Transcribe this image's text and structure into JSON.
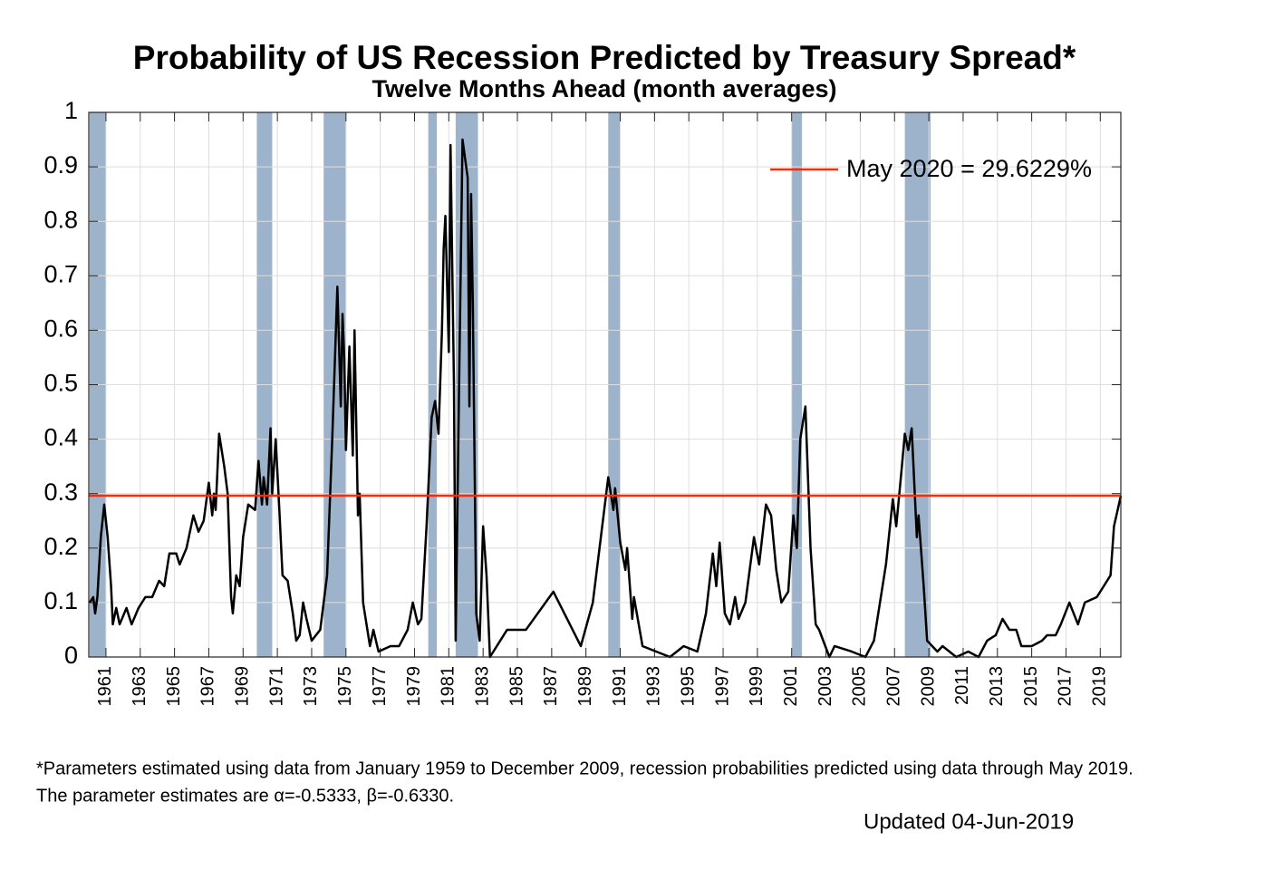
{
  "chart_data": {
    "type": "line",
    "title": "Probability of US Recession Predicted by Treasury Spread*",
    "subtitle": "Twelve Months Ahead (month averages)",
    "xlim": [
      1960,
      2020.2
    ],
    "ylim": [
      0,
      1
    ],
    "xticks": [
      1961,
      1963,
      1965,
      1967,
      1969,
      1971,
      1973,
      1975,
      1977,
      1979,
      1981,
      1983,
      1985,
      1987,
      1989,
      1991,
      1993,
      1995,
      1997,
      1999,
      2001,
      2003,
      2005,
      2007,
      2009,
      2011,
      2013,
      2015,
      2017,
      2019
    ],
    "yticks": [
      0,
      0.1,
      0.2,
      0.3,
      0.4,
      0.5,
      0.6,
      0.7,
      0.8,
      0.9,
      1
    ],
    "grid": true,
    "recession_color": "#9db3cc",
    "recessions": [
      [
        1960.05,
        1961.0
      ],
      [
        1969.8,
        1970.7
      ],
      [
        1973.7,
        1975.0
      ],
      [
        1979.8,
        1980.3
      ],
      [
        1981.4,
        1982.7
      ],
      [
        1990.3,
        1991.0
      ],
      [
        2001.0,
        2001.6
      ],
      [
        2007.6,
        2009.1
      ]
    ],
    "x": [
      1960.05,
      1960.26,
      1960.37,
      1960.5,
      1960.7,
      1960.9,
      1961.1,
      1961.3,
      1961.4,
      1961.6,
      1961.8,
      1962.2,
      1962.5,
      1962.9,
      1963.3,
      1963.7,
      1964.1,
      1964.4,
      1964.7,
      1965.1,
      1965.3,
      1965.7,
      1966.1,
      1966.4,
      1966.7,
      1967.0,
      1967.2,
      1967.3,
      1967.4,
      1967.6,
      1967.9,
      1968.1,
      1968.3,
      1968.4,
      1968.6,
      1968.8,
      1969.0,
      1969.3,
      1969.7,
      1969.9,
      1970.1,
      1970.2,
      1970.4,
      1970.6,
      1970.7,
      1970.9,
      1971.1,
      1971.3,
      1971.6,
      1971.9,
      1972.1,
      1972.3,
      1972.5,
      1972.7,
      1973.0,
      1973.5,
      1973.9,
      1974.2,
      1974.5,
      1974.7,
      1974.8,
      1974.9,
      1975.0,
      1975.2,
      1975.4,
      1975.5,
      1975.7,
      1975.8,
      1976.0,
      1976.4,
      1976.6,
      1976.9,
      1977.6,
      1978.1,
      1978.6,
      1978.9,
      1979.2,
      1979.4,
      1979.7,
      1980.0,
      1980.2,
      1980.4,
      1980.6,
      1980.7,
      1980.8,
      1981.0,
      1981.1,
      1981.3,
      1981.4,
      1981.6,
      1981.8,
      1982.1,
      1982.2,
      1982.3,
      1982.4,
      1982.6,
      1982.8,
      1983.0,
      1983.2,
      1983.4,
      1984.4,
      1985.5,
      1987.1,
      1987.9,
      1988.7,
      1989.4,
      1990.3,
      1990.6,
      1990.7,
      1991.0,
      1991.3,
      1991.4,
      1991.7,
      1991.8,
      1992.3,
      1993.9,
      1994.7,
      1995.5,
      1996.0,
      1996.4,
      1996.6,
      1996.8,
      1997.1,
      1997.4,
      1997.7,
      1997.9,
      1998.3,
      1998.8,
      1999.1,
      1999.5,
      1999.8,
      2000.1,
      2000.4,
      2000.8,
      2001.1,
      2001.3,
      2001.5,
      2001.8,
      2002.1,
      2002.4,
      2002.6,
      2003.2,
      2003.5,
      2004.5,
      2005.3,
      2005.8,
      2006.5,
      2006.9,
      2007.1,
      2007.4,
      2007.6,
      2007.8,
      2008.0,
      2008.3,
      2008.4,
      2008.7,
      2008.9,
      2009.5,
      2009.8,
      2010.6,
      2011.3,
      2011.9,
      2012.4,
      2012.9,
      2013.3,
      2013.7,
      2014.1,
      2014.4,
      2015.0,
      2015.6,
      2015.9,
      2016.4,
      2016.7,
      2017.2,
      2017.7,
      2018.1,
      2018.8,
      2019.2,
      2019.6,
      2019.8,
      2020.2
    ],
    "series": [
      {
        "color": "#000000",
        "values": [
          0.1,
          0.11,
          0.08,
          0.11,
          0.22,
          0.28,
          0.22,
          0.13,
          0.06,
          0.09,
          0.06,
          0.09,
          0.06,
          0.09,
          0.11,
          0.11,
          0.14,
          0.13,
          0.19,
          0.19,
          0.17,
          0.2,
          0.26,
          0.23,
          0.25,
          0.32,
          0.26,
          0.3,
          0.27,
          0.41,
          0.35,
          0.3,
          0.11,
          0.08,
          0.15,
          0.13,
          0.22,
          0.28,
          0.27,
          0.36,
          0.28,
          0.33,
          0.28,
          0.42,
          0.3,
          0.4,
          0.28,
          0.15,
          0.14,
          0.08,
          0.03,
          0.04,
          0.1,
          0.07,
          0.03,
          0.05,
          0.15,
          0.4,
          0.68,
          0.46,
          0.63,
          0.55,
          0.38,
          0.57,
          0.37,
          0.6,
          0.26,
          0.3,
          0.1,
          0.02,
          0.05,
          0.01,
          0.02,
          0.02,
          0.05,
          0.1,
          0.06,
          0.07,
          0.24,
          0.44,
          0.47,
          0.41,
          0.6,
          0.75,
          0.81,
          0.56,
          0.94,
          0.5,
          0.03,
          0.5,
          0.95,
          0.88,
          0.46,
          0.85,
          0.65,
          0.08,
          0.03,
          0.24,
          0.15,
          0.0,
          0.05,
          0.05,
          0.12,
          0.07,
          0.02,
          0.1,
          0.33,
          0.27,
          0.31,
          0.21,
          0.16,
          0.2,
          0.07,
          0.11,
          0.02,
          0.0,
          0.02,
          0.01,
          0.08,
          0.19,
          0.13,
          0.21,
          0.08,
          0.06,
          0.11,
          0.07,
          0.1,
          0.22,
          0.17,
          0.28,
          0.26,
          0.16,
          0.1,
          0.12,
          0.26,
          0.2,
          0.4,
          0.46,
          0.2,
          0.06,
          0.05,
          0.0,
          0.02,
          0.01,
          0.0,
          0.03,
          0.17,
          0.29,
          0.24,
          0.34,
          0.41,
          0.38,
          0.42,
          0.22,
          0.26,
          0.13,
          0.03,
          0.01,
          0.02,
          0.0,
          0.01,
          0.0,
          0.03,
          0.04,
          0.07,
          0.05,
          0.05,
          0.02,
          0.02,
          0.03,
          0.04,
          0.04,
          0.06,
          0.1,
          0.06,
          0.1,
          0.11,
          0.13,
          0.15,
          0.24,
          0.296
        ]
      }
    ],
    "reference_line": {
      "name": "May 2020 = 29.6229%",
      "value": 0.296229,
      "color": "#ff2a00"
    },
    "footnotes": [
      "*Parameters estimated using data from January 1959 to December 2009, recession probabilities predicted using data through May 2019.",
      "The parameter estimates are α=-0.5333, β=-0.6330."
    ],
    "updated": "Updated 04-Jun-2019"
  }
}
